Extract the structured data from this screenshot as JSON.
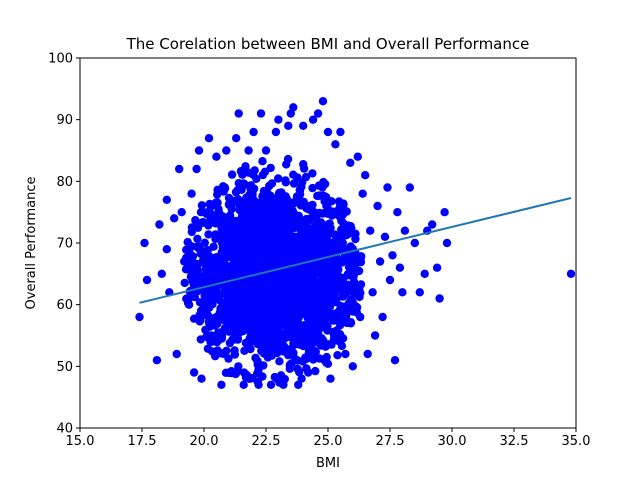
{
  "chart_data": {
    "type": "scatter",
    "title": "The Corelation between BMI and Overall Performance",
    "xlabel": "BMI",
    "ylabel": "Overall Performance",
    "xlim": [
      15.0,
      35.0
    ],
    "ylim": [
      40,
      100
    ],
    "x_ticks": [
      "15.0",
      "17.5",
      "20.0",
      "22.5",
      "25.0",
      "27.5",
      "30.0",
      "32.5",
      "35.0"
    ],
    "y_ticks": [
      "40",
      "50",
      "60",
      "70",
      "80",
      "90",
      "100"
    ],
    "grid": false,
    "legend": "none",
    "point_color": "#0000ff",
    "line_color": "#1f77b4",
    "cluster": {
      "description_values": "dense central mass of points",
      "center": [
        22.8,
        65
      ],
      "x_spread": 2.2,
      "y_spread": 8
    },
    "points": [
      [
        17.4,
        58
      ],
      [
        17.6,
        70
      ],
      [
        17.7,
        64
      ],
      [
        18.1,
        51
      ],
      [
        18.2,
        73
      ],
      [
        18.3,
        65
      ],
      [
        18.5,
        77
      ],
      [
        18.5,
        69
      ],
      [
        18.6,
        62
      ],
      [
        18.8,
        74
      ],
      [
        18.9,
        52
      ],
      [
        19.0,
        82
      ],
      [
        19.1,
        75
      ],
      [
        19.2,
        67
      ],
      [
        19.4,
        60
      ],
      [
        19.5,
        78
      ],
      [
        19.6,
        49
      ],
      [
        19.7,
        82
      ],
      [
        19.8,
        85
      ],
      [
        19.9,
        48
      ],
      [
        20.2,
        87
      ],
      [
        20.3,
        55
      ],
      [
        20.5,
        84
      ],
      [
        20.7,
        47
      ],
      [
        20.9,
        85
      ],
      [
        21.1,
        49
      ],
      [
        21.3,
        87
      ],
      [
        21.4,
        91
      ],
      [
        21.6,
        47
      ],
      [
        21.8,
        85
      ],
      [
        22.0,
        88
      ],
      [
        22.2,
        47
      ],
      [
        22.3,
        91
      ],
      [
        22.5,
        85
      ],
      [
        22.7,
        47
      ],
      [
        22.9,
        88
      ],
      [
        23.0,
        90
      ],
      [
        23.2,
        47
      ],
      [
        23.4,
        89
      ],
      [
        23.5,
        91
      ],
      [
        23.6,
        92
      ],
      [
        23.8,
        47
      ],
      [
        24.0,
        89
      ],
      [
        24.2,
        49
      ],
      [
        24.4,
        90
      ],
      [
        24.6,
        91
      ],
      [
        24.8,
        93
      ],
      [
        25.0,
        88
      ],
      [
        25.1,
        48
      ],
      [
        25.3,
        86
      ],
      [
        25.5,
        88
      ],
      [
        25.7,
        52
      ],
      [
        25.9,
        83
      ],
      [
        26.0,
        50
      ],
      [
        26.2,
        84
      ],
      [
        26.3,
        58
      ],
      [
        26.4,
        78
      ],
      [
        26.5,
        81
      ],
      [
        26.6,
        52
      ],
      [
        26.7,
        72
      ],
      [
        26.8,
        62
      ],
      [
        26.9,
        55
      ],
      [
        27.0,
        76
      ],
      [
        27.1,
        67
      ],
      [
        27.2,
        58
      ],
      [
        27.3,
        71
      ],
      [
        27.4,
        79
      ],
      [
        27.5,
        64
      ],
      [
        27.6,
        68
      ],
      [
        27.7,
        51
      ],
      [
        27.8,
        75
      ],
      [
        27.9,
        66
      ],
      [
        28.0,
        62
      ],
      [
        28.1,
        72
      ],
      [
        28.3,
        79
      ],
      [
        28.5,
        70
      ],
      [
        28.7,
        62
      ],
      [
        28.9,
        65
      ],
      [
        29.0,
        72
      ],
      [
        29.2,
        73
      ],
      [
        29.4,
        66
      ],
      [
        29.5,
        61
      ],
      [
        29.7,
        75
      ],
      [
        29.8,
        70
      ],
      [
        34.8,
        65
      ]
    ],
    "regression_line": {
      "x": [
        17.4,
        34.8
      ],
      "y": [
        60.3,
        77.3
      ]
    }
  }
}
